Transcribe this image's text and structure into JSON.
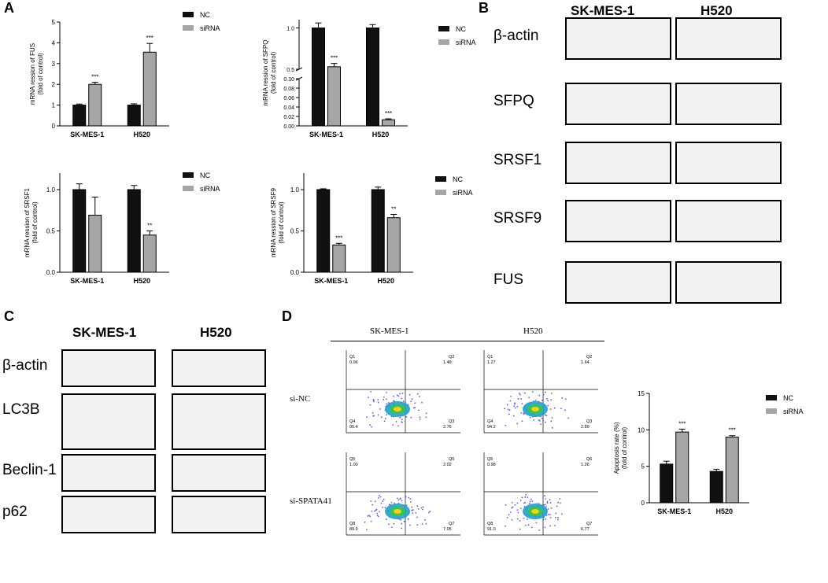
{
  "panels": {
    "a": "A",
    "b": "B",
    "c": "C",
    "d": "D"
  },
  "legend": {
    "nc": "NC",
    "sirna": "siRNA"
  },
  "chart_data": [
    {
      "type": "bar",
      "ylabel": "mRNA ression of FUS (fold of control)",
      "ylim": [
        0,
        5
      ],
      "yticks": [
        "0",
        "1",
        "2",
        "3",
        "4",
        "5"
      ],
      "categories": [
        "SK-MES-1",
        "H520"
      ],
      "series": [
        {
          "name": "NC",
          "values": [
            1.0,
            1.0
          ],
          "errors": [
            0.05,
            0.06
          ]
        },
        {
          "name": "siRNA",
          "values": [
            2.0,
            3.55
          ],
          "errors": [
            0.1,
            0.42
          ]
        }
      ],
      "annotations": [
        "***",
        "***"
      ]
    },
    {
      "type": "bar",
      "ylabel": "mRNA ression of SFPQ (fold of control)",
      "broken_axis": true,
      "ylim_lower": [
        0,
        0.1
      ],
      "ylim_upper": [
        0.5,
        1.1
      ],
      "yticks": [
        "0.00",
        "0.02",
        "0.04",
        "0.06",
        "0.08",
        "0.10",
        "0.5",
        "1.0"
      ],
      "categories": [
        "SK-MES-1",
        "H520"
      ],
      "series": [
        {
          "name": "NC",
          "values": [
            1.0,
            1.0
          ],
          "errors": [
            0.06,
            0.04
          ]
        },
        {
          "name": "siRNA",
          "values": [
            0.53,
            0.013
          ],
          "errors": [
            0.04,
            0.002
          ]
        }
      ],
      "annotations": [
        "***",
        "***"
      ]
    },
    {
      "type": "bar",
      "ylabel": "mRNA ression of SRSF1 (fold of control)",
      "ylim": [
        0,
        1.2
      ],
      "yticks": [
        "0.0",
        "0.5",
        "1.0"
      ],
      "categories": [
        "SK-MES-1",
        "H520"
      ],
      "series": [
        {
          "name": "NC",
          "values": [
            1.0,
            1.0
          ],
          "errors": [
            0.07,
            0.05
          ]
        },
        {
          "name": "siRNA",
          "values": [
            0.69,
            0.45
          ],
          "errors": [
            0.22,
            0.05
          ]
        }
      ],
      "annotations": [
        "",
        "**"
      ]
    },
    {
      "type": "bar",
      "ylabel": "mRNA ression of SRSF9 (fold of control)",
      "ylim": [
        0,
        1.2
      ],
      "yticks": [
        "0.0",
        "0.5",
        "1.0"
      ],
      "categories": [
        "SK-MES-1",
        "H520"
      ],
      "series": [
        {
          "name": "NC",
          "values": [
            1.0,
            1.0
          ],
          "errors": [
            0.01,
            0.03
          ]
        },
        {
          "name": "siRNA",
          "values": [
            0.33,
            0.66
          ],
          "errors": [
            0.02,
            0.04
          ]
        }
      ],
      "annotations": [
        "***",
        "**"
      ]
    },
    {
      "type": "bar",
      "ylabel": "Apoptosis rate (%) (fold of control)",
      "ylim": [
        0,
        15
      ],
      "yticks": [
        "0",
        "5",
        "10",
        "15"
      ],
      "categories": [
        "SK-MES-1",
        "H520"
      ],
      "series": [
        {
          "name": "NC",
          "values": [
            5.3,
            4.3
          ],
          "errors": [
            0.4,
            0.3
          ]
        },
        {
          "name": "siRNA",
          "values": [
            9.7,
            9.0
          ],
          "errors": [
            0.4,
            0.2
          ]
        }
      ],
      "annotations": [
        "***",
        "***"
      ]
    }
  ],
  "blots_b": {
    "titles": [
      "SK-MES-1",
      "H520"
    ],
    "proteins": [
      "β-actin",
      "SFPQ",
      "SRSF1",
      "SRSF9",
      "FUS"
    ]
  },
  "blots_c": {
    "titles": [
      "SK-MES-1",
      "H520"
    ],
    "proteins": [
      "β-actin",
      "LC3B",
      "Beclin-1",
      "p62"
    ]
  },
  "flow": {
    "columns": [
      "SK-MES-1",
      "H520"
    ],
    "rows": [
      "si-NC",
      "si-SPATA41"
    ],
    "quadrants": [
      {
        "q1": "Q1",
        "v1": "0.96",
        "q2": "Q2",
        "v2": "1.48",
        "q3": "Q3",
        "v3": "2.76",
        "q4": "Q4",
        "v4": "95.4"
      },
      {
        "q1": "Q1",
        "v1": "1.27",
        "q2": "Q2",
        "v2": "1.64",
        "q3": "Q3",
        "v3": "2.89",
        "q4": "Q4",
        "v4": "94.2"
      },
      {
        "q1": "Q5",
        "v1": "1.00",
        "q2": "Q6",
        "v2": "2.02",
        "q3": "Q7",
        "v3": "7.05",
        "q4": "Q8",
        "v4": "89.9"
      },
      {
        "q1": "Q5",
        "v1": "0.98",
        "q2": "Q6",
        "v2": "1.26",
        "q3": "Q7",
        "v3": "6.77",
        "q4": "Q8",
        "v4": "91.0"
      }
    ]
  }
}
